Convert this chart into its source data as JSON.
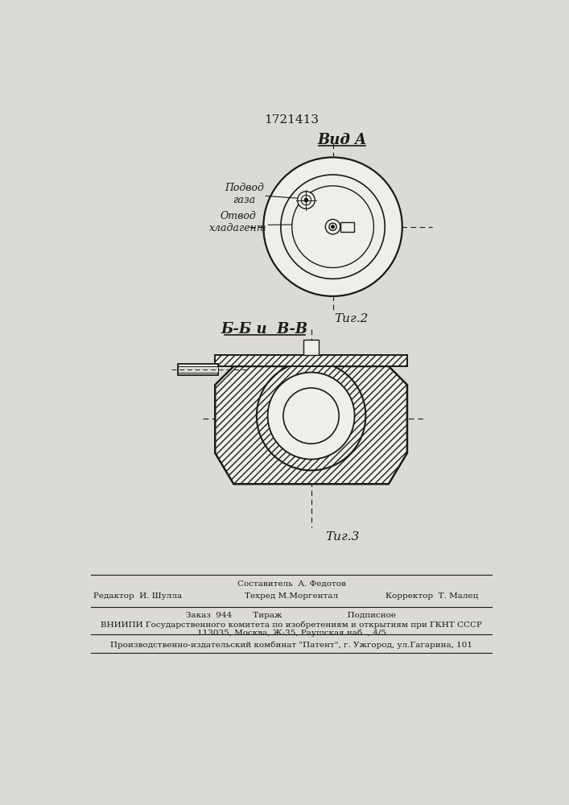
{
  "patent_number": "1721413",
  "bg_color": "#dcdad4",
  "line_color": "#1a1a1a",
  "fig2_label": "Τиг.2",
  "fig3_label": "Τиг.3",
  "vid_a_label": "Вид A",
  "bb_label": "Б-Б и  В-В",
  "podvod_label": "Подвод\nгаза",
  "otvod_label": "Отвод\nхладагент",
  "footer_line1_left": "Редактор  И. Шулла",
  "footer_line1_center_top": "Составитель  А. Федотов",
  "footer_line1_center_bot": "Техред М.Моргентал",
  "footer_line1_right": "Корректор  Т. Малец",
  "footer_line2": "Заказ  944        Тираж                         Подписное",
  "footer_line3": "ВНИИПИ Государственного комитета по изобретениям и открытиям при ГКНТ СССР",
  "footer_line4": "113035, Москва, Ж-35, Раушская наб.., 4/5",
  "footer_line5": "Производственно-издательский комбинат \"Патент\", г. Ужгород, ул.Гагарина, 101"
}
